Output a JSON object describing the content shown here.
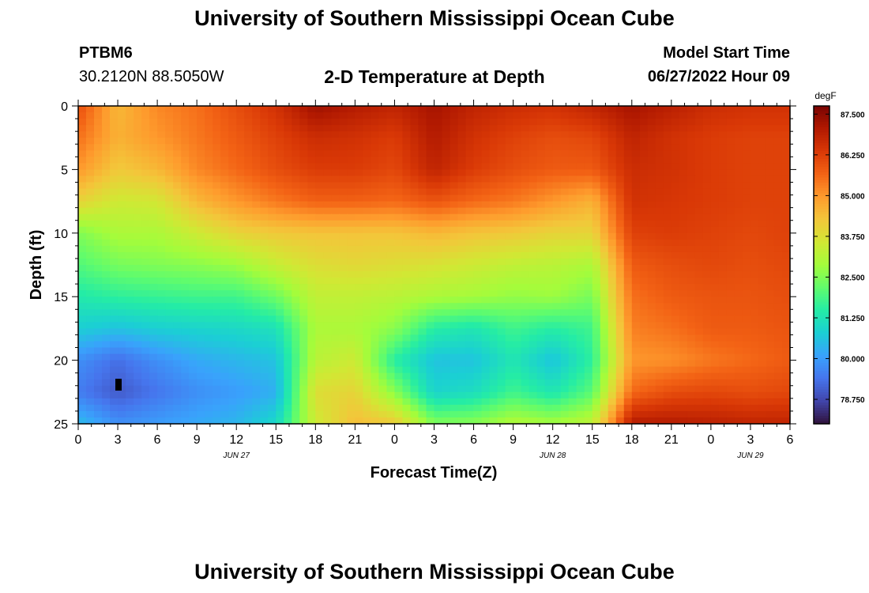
{
  "header": {
    "title": "University of Southern Mississippi Ocean Cube",
    "station": "PTBM6",
    "location": "30.2120N  88.5050W",
    "plot_title": "2-D Temperature at Depth",
    "model_start_label": "Model Start Time",
    "model_start_value": "06/27/2022 Hour 09"
  },
  "footer": {
    "title": "University of Southern Mississippi Ocean Cube"
  },
  "colors": {
    "background": "#ffffff",
    "colormap": [
      "#30123b",
      "#4145ab",
      "#4675ed",
      "#39a2fc",
      "#1bcfd4",
      "#24eca6",
      "#61fc6c",
      "#a4fc3b",
      "#d1e834",
      "#f3c63a",
      "#fe9b2d",
      "#f36315",
      "#d93806",
      "#b11901",
      "#7a0402"
    ]
  },
  "chart_data": {
    "type": "heatmap",
    "title": "2-D Temperature at Depth",
    "xlabel": "Forecast Time(Z)",
    "ylabel": "Depth (ft)",
    "x_range_hours": [
      0,
      54
    ],
    "x_tick_labels": [
      "0",
      "3",
      "6",
      "9",
      "12",
      "15",
      "18",
      "21",
      "0",
      "3",
      "6",
      "9",
      "12",
      "15",
      "18",
      "21",
      "0",
      "3",
      "6"
    ],
    "date_labels": [
      {
        "label": "JUN 27",
        "at_hour": 12
      },
      {
        "label": "JUN 28",
        "at_hour": 36
      },
      {
        "label": "JUN 29",
        "at_hour": 51
      }
    ],
    "y_range": [
      0,
      25
    ],
    "y_reversed": true,
    "y_tick_labels": [
      "0",
      "5",
      "10",
      "15",
      "20",
      "25"
    ],
    "colorbar": {
      "label": "degF",
      "min": 78.0,
      "max": 87.75,
      "tick_labels": [
        "87.500",
        "86.250",
        "85.000",
        "83.750",
        "82.500",
        "81.250",
        "80.000",
        "78.750"
      ],
      "tick_values": [
        87.5,
        86.25,
        85.0,
        83.75,
        82.5,
        81.25,
        80.0,
        78.75
      ]
    },
    "grid": {
      "hours": [
        0,
        3,
        6,
        9,
        12,
        15,
        18,
        21,
        24,
        27,
        30,
        33,
        36,
        39,
        42,
        45,
        48,
        51,
        54
      ],
      "depths": [
        0,
        2.5,
        5,
        7.5,
        10,
        12.5,
        15,
        17.5,
        20,
        22.5,
        25
      ],
      "values": [
        [
          86.0,
          84.5,
          85.2,
          85.5,
          86.0,
          86.5,
          87.3,
          87.0,
          86.8,
          87.2,
          86.8,
          86.6,
          86.5,
          86.8,
          87.2,
          86.9,
          86.6,
          86.5,
          86.5
        ],
        [
          85.5,
          84.6,
          85.0,
          85.4,
          85.8,
          86.2,
          86.6,
          86.5,
          86.3,
          87.0,
          86.5,
          86.2,
          86.0,
          86.1,
          86.8,
          86.5,
          86.3,
          86.2,
          86.2
        ],
        [
          85.0,
          84.2,
          84.5,
          85.2,
          85.6,
          86.0,
          86.3,
          86.3,
          86.1,
          86.8,
          86.3,
          86.0,
          85.8,
          85.8,
          86.6,
          86.5,
          86.3,
          86.2,
          86.2
        ],
        [
          84.0,
          83.5,
          83.6,
          84.5,
          85.0,
          85.4,
          85.7,
          85.7,
          85.6,
          85.9,
          85.6,
          85.4,
          85.0,
          84.6,
          86.5,
          86.4,
          86.3,
          86.2,
          86.2
        ],
        [
          82.5,
          83.0,
          83.0,
          83.5,
          84.0,
          84.2,
          84.3,
          84.3,
          84.3,
          84.5,
          84.3,
          84.2,
          84.0,
          84.0,
          86.2,
          86.3,
          86.2,
          86.1,
          86.2
        ],
        [
          82.0,
          82.4,
          82.5,
          82.6,
          82.8,
          83.4,
          83.8,
          83.9,
          83.8,
          83.7,
          83.5,
          83.3,
          83.2,
          83.0,
          85.8,
          86.0,
          86.1,
          86.0,
          86.1
        ],
        [
          81.4,
          81.6,
          81.7,
          81.8,
          81.8,
          82.3,
          83.3,
          83.3,
          83.2,
          83.0,
          82.9,
          82.7,
          82.8,
          82.4,
          85.5,
          85.8,
          85.9,
          85.9,
          86.0
        ],
        [
          80.8,
          80.6,
          80.8,
          80.9,
          81.0,
          81.2,
          83.0,
          83.0,
          82.6,
          81.5,
          81.3,
          81.8,
          81.5,
          81.8,
          85.3,
          85.5,
          85.8,
          85.8,
          85.9
        ],
        [
          79.8,
          79.3,
          79.8,
          80.2,
          80.4,
          80.6,
          83.2,
          83.5,
          81.5,
          80.6,
          80.6,
          81.3,
          80.6,
          81.6,
          85.0,
          85.1,
          85.4,
          85.6,
          85.8
        ],
        [
          79.5,
          79.0,
          79.4,
          79.8,
          80.0,
          80.3,
          83.8,
          84.0,
          82.6,
          80.9,
          81.1,
          81.8,
          81.3,
          82.1,
          85.6,
          86.0,
          86.1,
          86.0,
          86.1
        ],
        [
          80.5,
          79.8,
          80.0,
          80.2,
          80.4,
          81.0,
          83.5,
          84.4,
          84.2,
          82.5,
          82.6,
          83.1,
          82.9,
          83.3,
          87.0,
          87.0,
          86.9,
          86.8,
          86.8
        ]
      ]
    }
  }
}
